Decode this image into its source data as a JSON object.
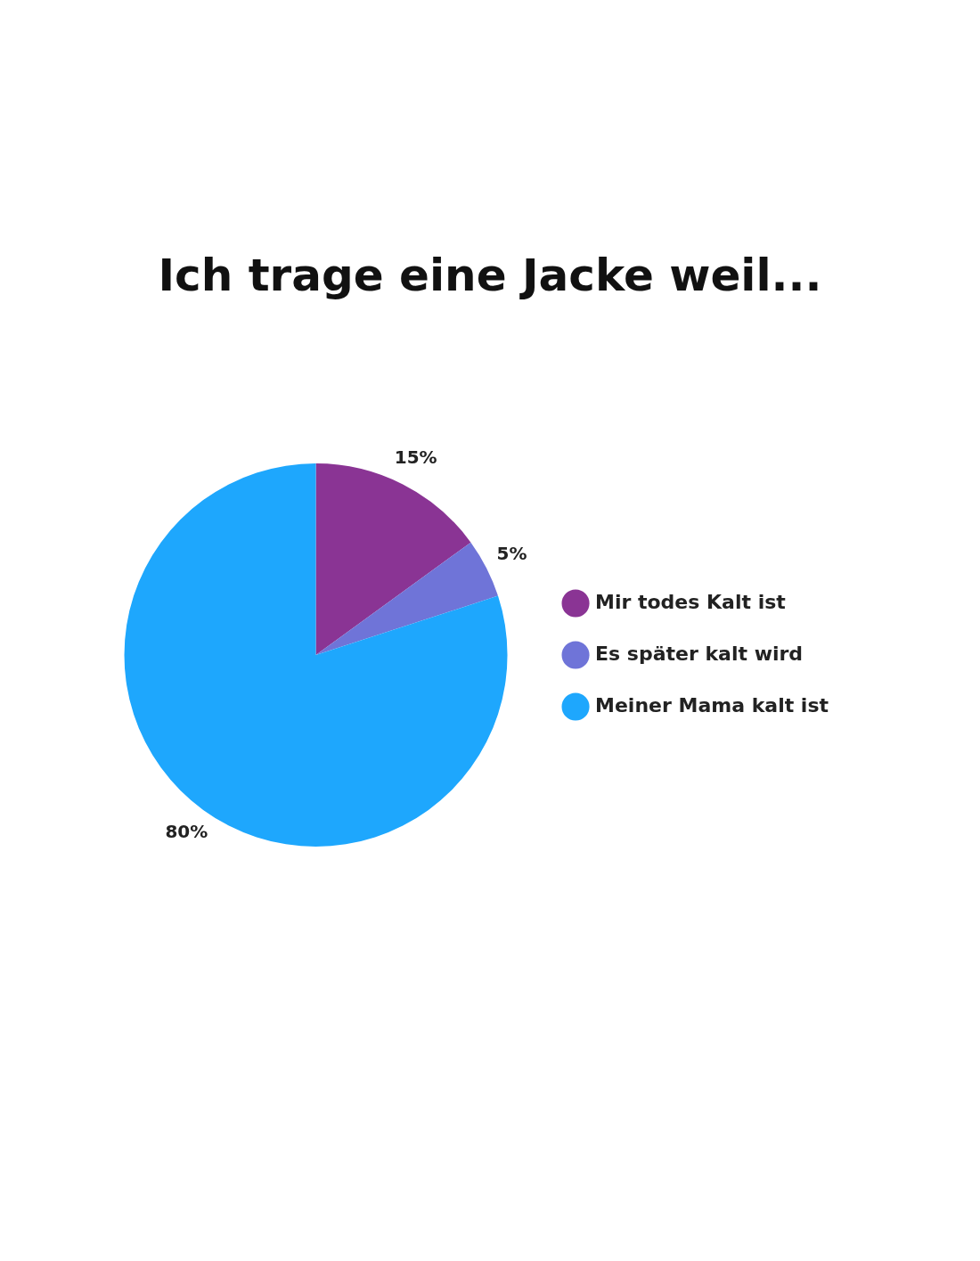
{
  "chart_data": {
    "type": "pie",
    "title": "Ich trage eine Jacke weil...",
    "categories": [
      "Mir todes Kalt ist",
      "Es später kalt wird",
      "Meiner Mama kalt ist"
    ],
    "values": [
      15,
      5,
      80
    ],
    "value_labels": [
      "15%",
      "5%",
      "80%"
    ],
    "colors": [
      "#8a3494",
      "#6f74d8",
      "#1ea7fd"
    ],
    "legend": "right"
  }
}
